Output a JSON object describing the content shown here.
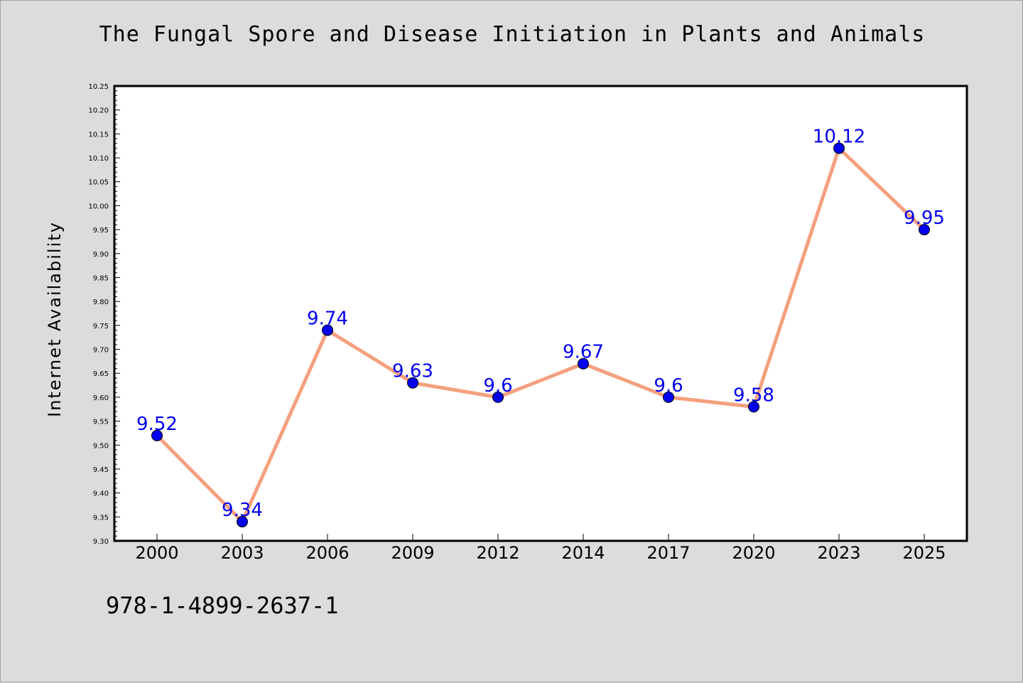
{
  "title": "The Fungal Spore and Disease Initiation in Plants and Animals",
  "footer_text": "978-1-4899-2637-1",
  "colors": {
    "background": "#dcdcdc",
    "plot_background": "#ffffff",
    "line": "#f4a07e",
    "marker_fill": "#0000ee",
    "label": "#0000ee"
  },
  "chart_data": {
    "type": "line",
    "title": "The Fungal Spore and Disease Initiation in Plants and Animals",
    "xlabel": "",
    "ylabel": "Internet Availability",
    "categories": [
      "2000",
      "2003",
      "2006",
      "2009",
      "2012",
      "2014",
      "2017",
      "2020",
      "2023",
      "2025"
    ],
    "series": [
      {
        "values": [
          9.52,
          9.34,
          9.74,
          9.63,
          9.6,
          9.67,
          9.6,
          9.58,
          10.12,
          9.95
        ],
        "labels": [
          "9.52",
          "9.34",
          "9.74",
          "9.63",
          "9.6",
          "9.67",
          "9.6",
          "9.58",
          "10.12",
          "9.95"
        ]
      }
    ],
    "ylim": [
      9.3,
      10.25
    ],
    "yticks": [
      "9.30",
      "9.35",
      "9.40",
      "9.45",
      "9.50",
      "9.55",
      "9.60",
      "9.65",
      "9.70",
      "9.75",
      "9.80",
      "9.85",
      "9.90",
      "9.95",
      "10.00",
      "10.05",
      "10.10",
      "10.15",
      "10.20",
      "10.25"
    ],
    "grid": false,
    "legend": "none"
  }
}
